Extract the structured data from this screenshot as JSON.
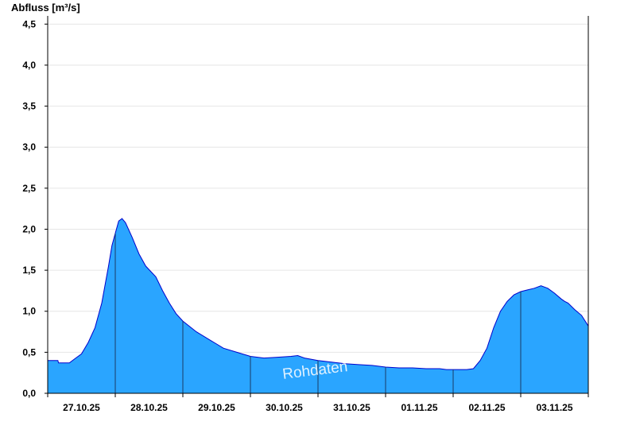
{
  "chart_data": {
    "type": "area",
    "ylabel": "Abfluss [m³/s]",
    "ylim": [
      0,
      4.6
    ],
    "yticks": [
      "0,0",
      "0,5",
      "1,0",
      "1,5",
      "2,0",
      "2,5",
      "3,0",
      "3,5",
      "4,0",
      "4,5"
    ],
    "ytick_values": [
      0,
      0.5,
      1.0,
      1.5,
      2.0,
      2.5,
      3.0,
      3.5,
      4.0,
      4.5
    ],
    "xlim_days": [
      0,
      8
    ],
    "day_labels": [
      "27.10.25",
      "28.10.25",
      "29.10.25",
      "30.10.25",
      "31.10.25",
      "01.11.25",
      "02.11.25",
      "03.11.25"
    ],
    "watermark": "Rohdaten",
    "grid": true,
    "colors": {
      "fill": "#2aa5ff",
      "line": "#0000cc",
      "grid": "#e6e6e6",
      "axis": "#000000"
    },
    "series": [
      {
        "x": [
          0,
          0.15,
          0.16,
          0.32,
          0.4,
          0.5,
          0.6,
          0.7,
          0.8,
          0.9,
          0.95,
          1.0,
          1.05,
          1.1,
          1.15,
          1.25,
          1.35,
          1.45,
          1.6,
          1.7,
          1.8,
          1.9,
          2.0,
          2.2,
          2.4,
          2.5,
          2.6,
          2.8,
          3.0,
          3.2,
          3.4,
          3.6,
          3.7,
          3.8,
          4.0,
          4.2,
          4.4,
          4.6,
          4.8,
          5.0,
          5.2,
          5.4,
          5.6,
          5.7,
          5.8,
          5.9,
          6.0,
          6.05,
          6.1,
          6.2,
          6.3,
          6.4,
          6.5,
          6.6,
          6.7,
          6.8,
          6.9,
          7.0,
          7.1,
          7.2,
          7.3,
          7.4,
          7.5,
          7.6,
          7.65,
          7.7,
          7.8,
          7.9,
          8.0
        ],
        "y": [
          0.4,
          0.4,
          0.37,
          0.37,
          0.42,
          0.48,
          0.62,
          0.8,
          1.1,
          1.55,
          1.8,
          1.95,
          2.1,
          2.13,
          2.08,
          1.9,
          1.7,
          1.55,
          1.42,
          1.25,
          1.1,
          0.97,
          0.88,
          0.75,
          0.65,
          0.6,
          0.55,
          0.5,
          0.45,
          0.43,
          0.44,
          0.45,
          0.46,
          0.43,
          0.4,
          0.38,
          0.36,
          0.35,
          0.34,
          0.32,
          0.31,
          0.31,
          0.3,
          0.3,
          0.3,
          0.29,
          0.29,
          0.29,
          0.29,
          0.29,
          0.3,
          0.4,
          0.55,
          0.8,
          1.0,
          1.12,
          1.2,
          1.24,
          1.26,
          1.28,
          1.31,
          1.28,
          1.22,
          1.15,
          1.12,
          1.1,
          1.02,
          0.95,
          0.82
        ]
      }
    ]
  }
}
